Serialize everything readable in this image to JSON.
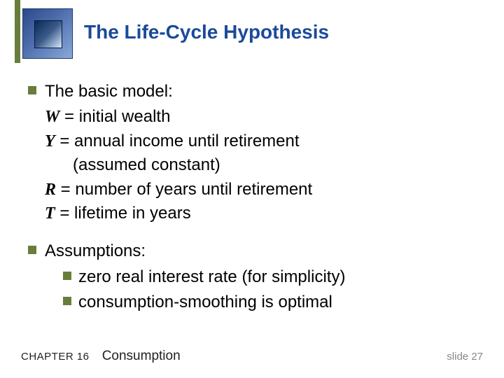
{
  "title": "The Life-Cycle Hypothesis",
  "section1": {
    "heading": "The basic model:",
    "lines": [
      {
        "var": "W",
        "def": " = initial wealth"
      },
      {
        "var": "Y",
        "def": " = annual income until retirement"
      },
      {
        "cont": "(assumed constant)"
      },
      {
        "var": "R",
        "def": " = number of years until retirement"
      },
      {
        "var": "T",
        "def": " = lifetime in years"
      }
    ]
  },
  "section2": {
    "heading": "Assumptions:",
    "items": [
      "zero real interest rate (for simplicity)",
      "consumption-smoothing is optimal"
    ]
  },
  "footer": {
    "chapter": "CHAPTER 16",
    "topic": "Consumption",
    "slide": "slide 27"
  },
  "colors": {
    "accent": "#677e3a",
    "title": "#1a4a9a"
  }
}
